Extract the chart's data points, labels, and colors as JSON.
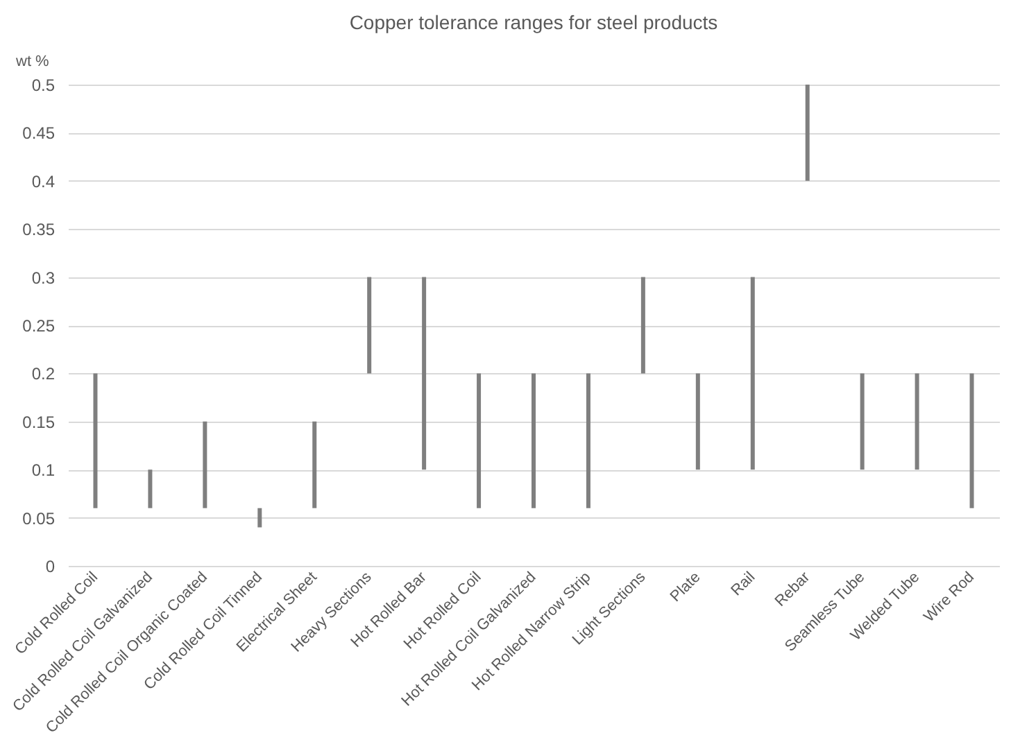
{
  "chart_data": {
    "type": "bar",
    "title": "Copper tolerance ranges for steel products",
    "ylabel": "wt %",
    "categories": [
      "Cold Rolled Coil",
      "Cold Rolled Coil Galvanized",
      "Cold Rolled Coil Organic Coated",
      "Cold Rolled Coil Tinned",
      "Electrical Sheet",
      "Heavy Sections",
      "Hot Rolled Bar",
      "Hot Rolled Coil",
      "Hot Rolled Coil Galvanized",
      "Hot Rolled Narrow Strip",
      "Light Sections",
      "Plate",
      "Rail",
      "Rebar",
      "Seamless Tube",
      "Welded Tube",
      "Wire Rod"
    ],
    "base": [
      0.06,
      0.06,
      0.06,
      0.04,
      0.06,
      0.2,
      0.1,
      0.06,
      0.06,
      0.06,
      0.2,
      0.1,
      0.1,
      0.4,
      0.1,
      0.1,
      0.06
    ],
    "values": [
      0.14,
      0.04,
      0.09,
      0.02,
      0.09,
      0.1,
      0.2,
      0.14,
      0.14,
      0.14,
      0.1,
      0.1,
      0.2,
      0.1,
      0.1,
      0.1,
      0.14
    ],
    "color": "#7f7f7f",
    "ylim": [
      0,
      0.5
    ],
    "yticks": [
      0,
      0.05,
      0.1,
      0.15,
      0.2,
      0.25,
      0.3,
      0.35,
      0.4,
      0.45,
      0.5
    ],
    "grid": "y"
  }
}
